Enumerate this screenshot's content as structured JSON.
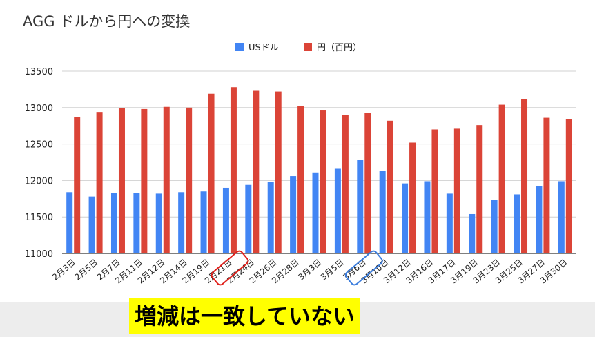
{
  "chart_data": {
    "type": "bar",
    "title": "AGG ドルから円への変換",
    "xlabel": "",
    "ylabel": "",
    "ylim": [
      11000,
      13500
    ],
    "yticks": [
      11000,
      11500,
      12000,
      12500,
      13000,
      13500
    ],
    "grid": true,
    "legend_position": "top-center",
    "categories": [
      "2月3日",
      "2月5日",
      "2月7日",
      "2月11日",
      "2月12日",
      "2月14日",
      "2月19日",
      "2月21日",
      "2月24日",
      "2月26日",
      "2月28日",
      "3月3日",
      "3月5日",
      "3月6日",
      "3月10日",
      "3月12日",
      "3月16日",
      "3月17日",
      "3月19日",
      "3月23日",
      "3月25日",
      "3月27日",
      "3月30日"
    ],
    "series": [
      {
        "name": "USドル",
        "color": "#4285f4",
        "values": [
          11840,
          11780,
          11830,
          11830,
          11820,
          11840,
          11850,
          11900,
          11940,
          11980,
          12060,
          12110,
          12160,
          12280,
          12130,
          11960,
          11990,
          11820,
          11540,
          11730,
          11810,
          11920,
          11990
        ]
      },
      {
        "name": "円（百円）",
        "color": "#db4437",
        "values": [
          12870,
          12940,
          12990,
          12980,
          13010,
          13000,
          13190,
          13280,
          13230,
          13220,
          13020,
          12960,
          12900,
          12930,
          12820,
          12520,
          12700,
          12710,
          12760,
          13040,
          13120,
          12860,
          12840
        ]
      }
    ],
    "annotations": [
      {
        "type": "box",
        "target_category": "2月21日",
        "color": "#e0201b"
      },
      {
        "type": "box",
        "target_category": "3月6日",
        "color": "#3b7ddd"
      }
    ]
  },
  "caption": "増減は一致していない"
}
